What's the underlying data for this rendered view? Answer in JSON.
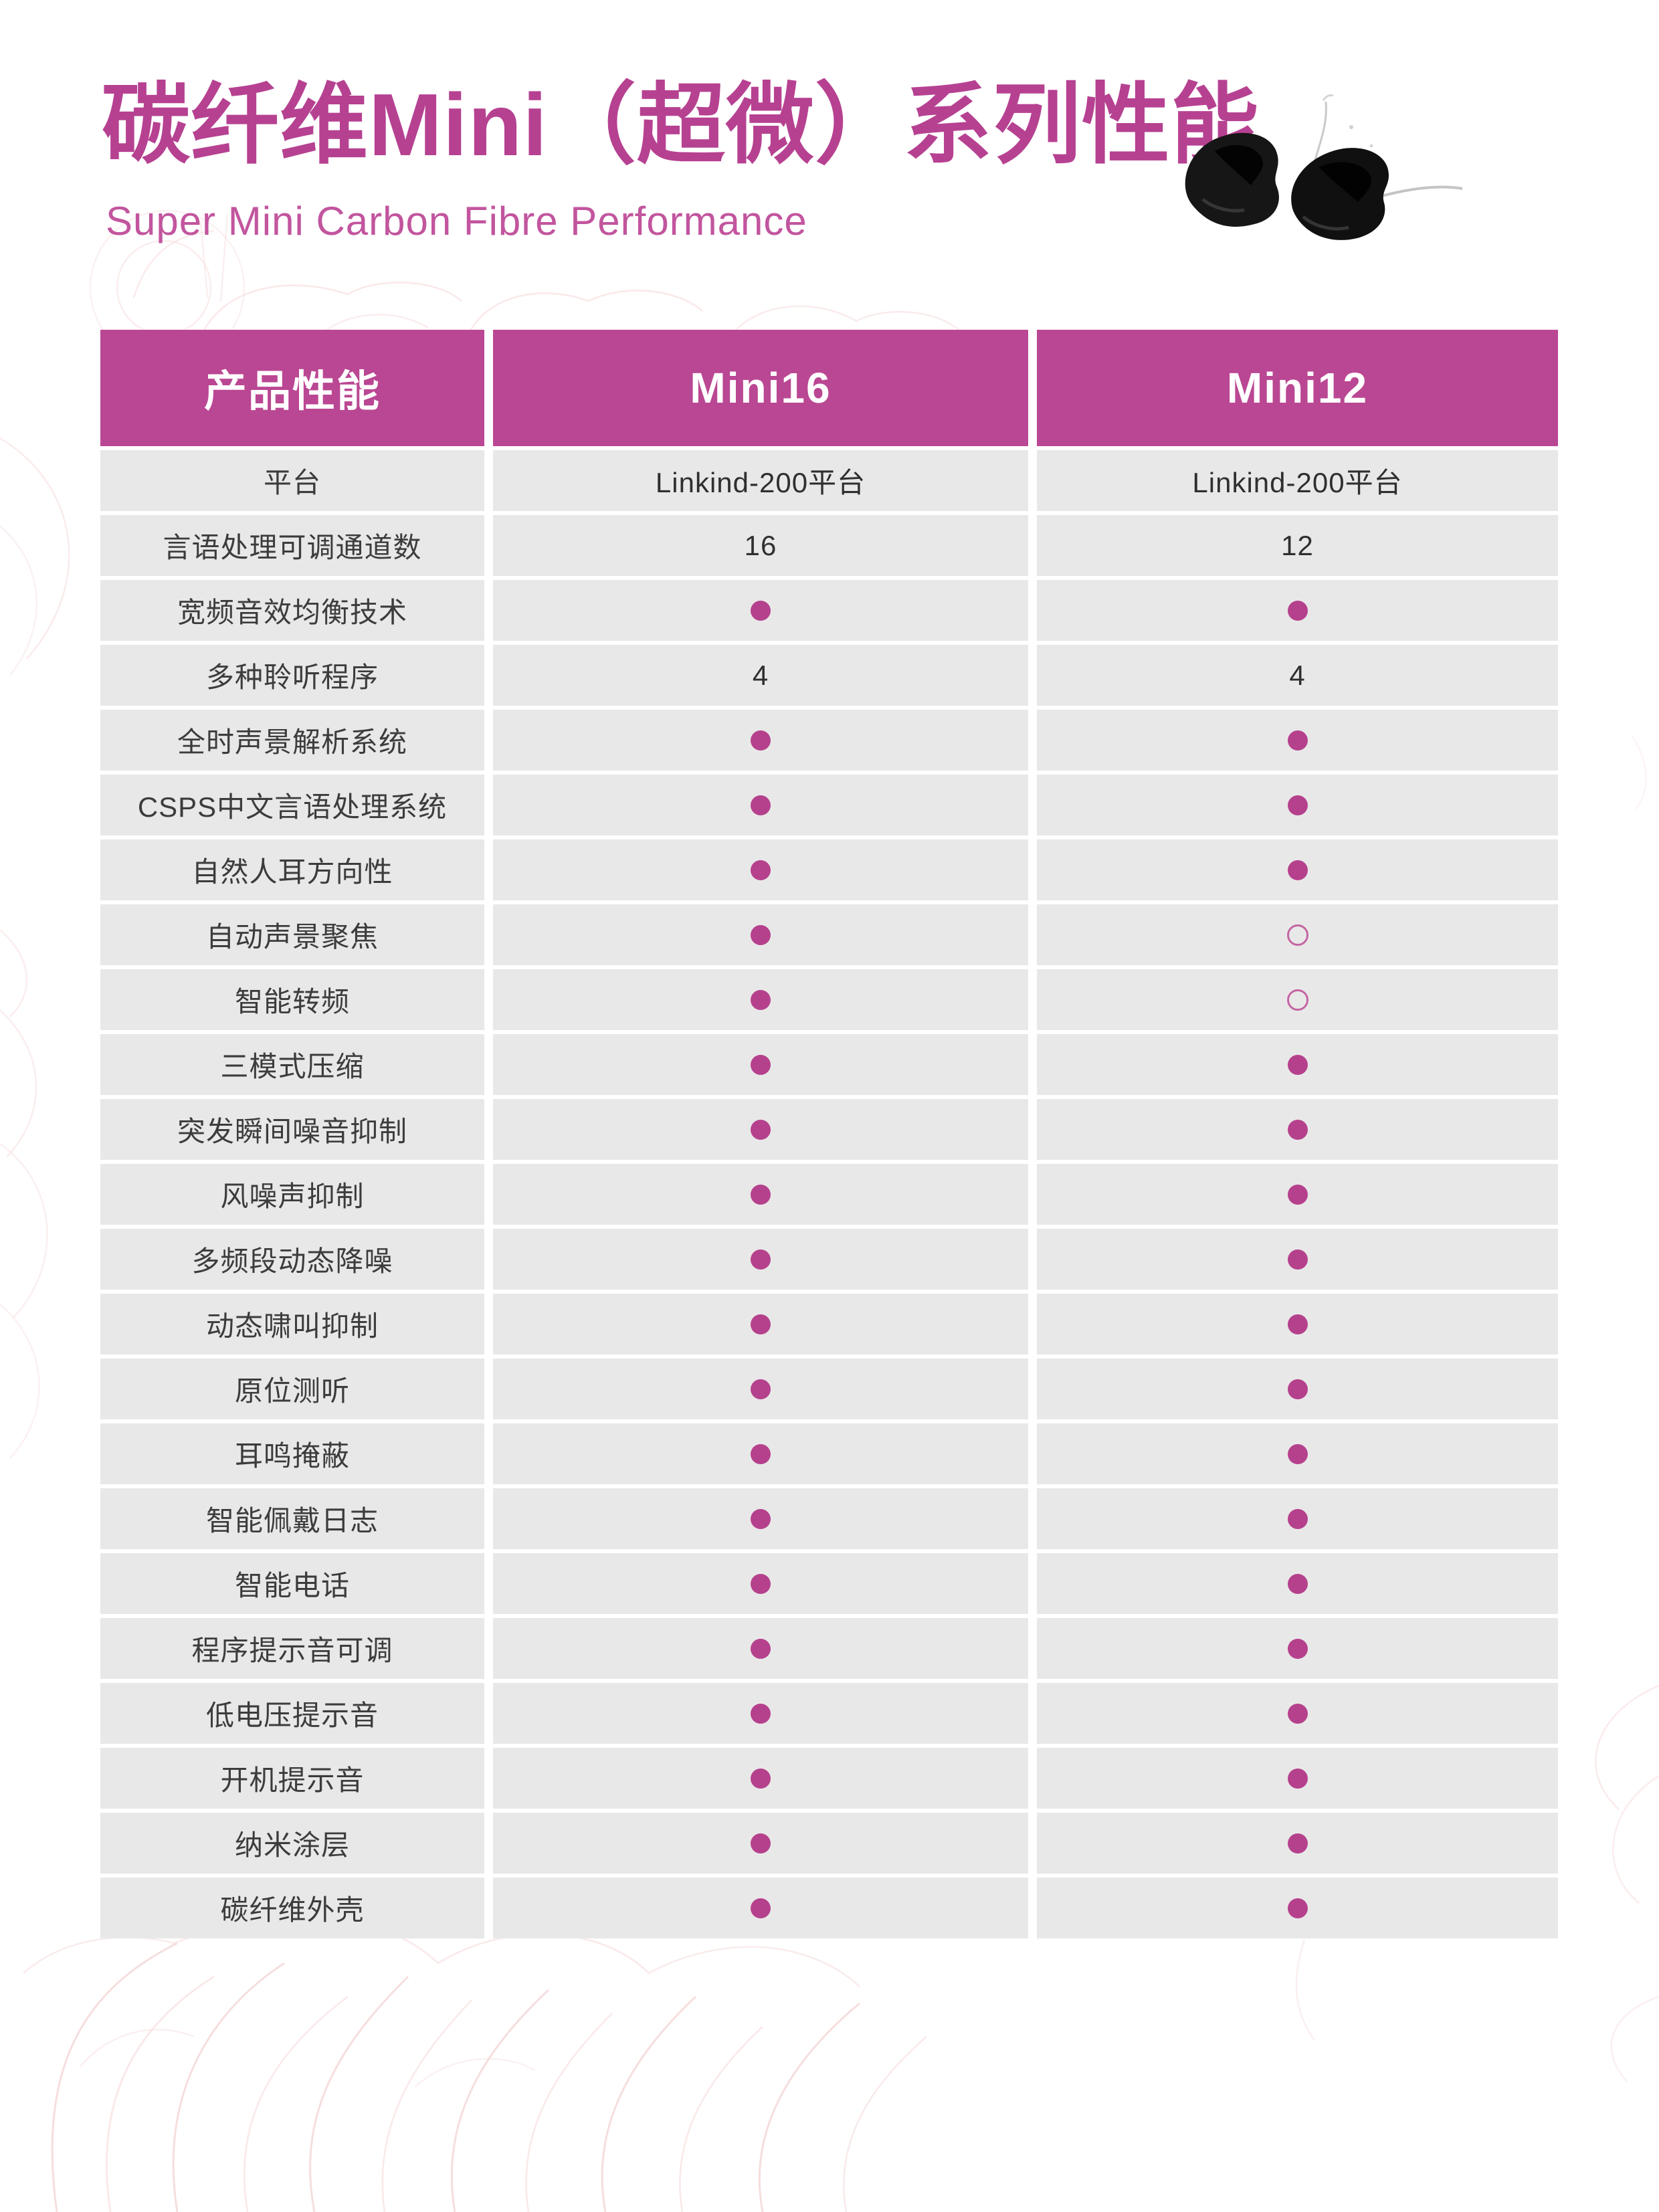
{
  "page": {
    "title": "碳纤维Mini（超微）系列性能",
    "subtitle": "Super Mini Carbon Fibre Performance"
  },
  "colors": {
    "accent_magenta": "#ba4793",
    "title_magenta": "#b64191",
    "subtitle_pink": "#c2559e",
    "row_background": "#e9e8e8",
    "dot_filled": "#b5418d",
    "dot_hollow_stroke": "#c466a4",
    "body_text": "#3c3c3c",
    "decor_pink": "#f5d7d7"
  },
  "icons": {
    "product_image": "hearing-aids-pair",
    "dot_filled": "filled-circle-feature-yes",
    "dot_hollow": "hollow-circle-feature-no"
  },
  "table": {
    "columns": [
      "产品性能",
      "Mini16",
      "Mini12"
    ],
    "rows": [
      {
        "label": "平台",
        "mini16": "Linkind-200平台",
        "mini12": "Linkind-200平台"
      },
      {
        "label": "言语处理可调通道数",
        "mini16": "16",
        "mini12": "12"
      },
      {
        "label": "宽频音效均衡技术",
        "mini16": "dot-filled",
        "mini12": "dot-filled"
      },
      {
        "label": "多种聆听程序",
        "mini16": "4",
        "mini12": "4"
      },
      {
        "label": "全时声景解析系统",
        "mini16": "dot-filled",
        "mini12": "dot-filled"
      },
      {
        "label": "CSPS中文言语处理系统",
        "mini16": "dot-filled",
        "mini12": "dot-filled"
      },
      {
        "label": "自然人耳方向性",
        "mini16": "dot-filled",
        "mini12": "dot-filled"
      },
      {
        "label": "自动声景聚焦",
        "mini16": "dot-filled",
        "mini12": "dot-hollow"
      },
      {
        "label": "智能转频",
        "mini16": "dot-filled",
        "mini12": "dot-hollow"
      },
      {
        "label": "三模式压缩",
        "mini16": "dot-filled",
        "mini12": "dot-filled"
      },
      {
        "label": "突发瞬间噪音抑制",
        "mini16": "dot-filled",
        "mini12": "dot-filled"
      },
      {
        "label": "风噪声抑制",
        "mini16": "dot-filled",
        "mini12": "dot-filled"
      },
      {
        "label": "多频段动态降噪",
        "mini16": "dot-filled",
        "mini12": "dot-filled"
      },
      {
        "label": "动态啸叫抑制",
        "mini16": "dot-filled",
        "mini12": "dot-filled"
      },
      {
        "label": "原位测听",
        "mini16": "dot-filled",
        "mini12": "dot-filled"
      },
      {
        "label": "耳鸣掩蔽",
        "mini16": "dot-filled",
        "mini12": "dot-filled"
      },
      {
        "label": "智能佩戴日志",
        "mini16": "dot-filled",
        "mini12": "dot-filled"
      },
      {
        "label": "智能电话",
        "mini16": "dot-filled",
        "mini12": "dot-filled"
      },
      {
        "label": "程序提示音可调",
        "mini16": "dot-filled",
        "mini12": "dot-filled"
      },
      {
        "label": "低电压提示音",
        "mini16": "dot-filled",
        "mini12": "dot-filled"
      },
      {
        "label": "开机提示音",
        "mini16": "dot-filled",
        "mini12": "dot-filled"
      },
      {
        "label": "纳米涂层",
        "mini16": "dot-filled",
        "mini12": "dot-filled"
      },
      {
        "label": "碳纤维外壳",
        "mini16": "dot-filled",
        "mini12": "dot-filled"
      }
    ]
  }
}
